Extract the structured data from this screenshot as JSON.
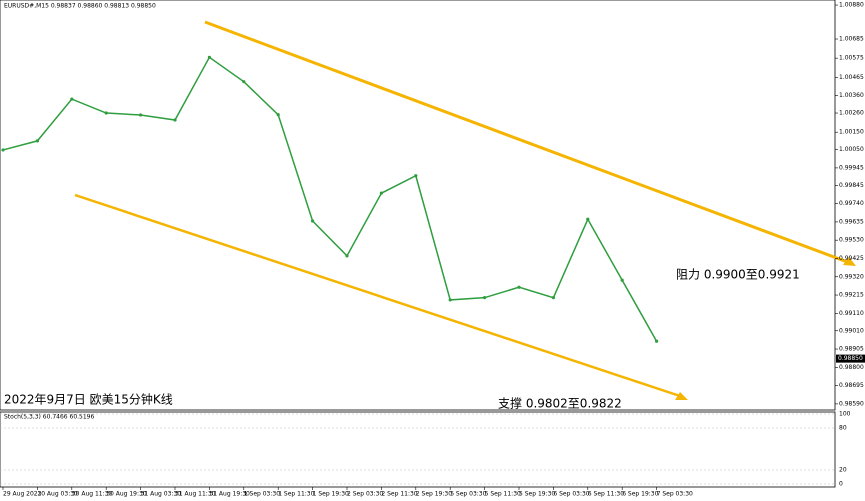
{
  "chart_data": {
    "type": "line",
    "header": "EURUSD#,M15 0.98837 0.98860 0.98813 0.98850",
    "title": "2022年9月7日 欧美15分钟K线",
    "annotations": [
      "阻力 0.9900至0.9921",
      "支撑 0.9802至0.9822"
    ],
    "categories": [
      "29 Aug 2022",
      "30 Aug 03:30",
      "30 Aug 11:30",
      "30 Aug 19:30",
      "31 Aug 03:30",
      "31 Aug 11:30",
      "31 Aug 19:30",
      "1 Sep 03:30",
      "1 Sep 11:30",
      "1 Sep 19:30",
      "2 Sep 03:30",
      "2 Sep 11:30",
      "2 Sep 19:30",
      "5 Sep 03:30",
      "5 Sep 11:30",
      "5 Sep 19:30",
      "6 Sep 03:30",
      "6 Sep 11:30",
      "6 Sep 19:30",
      "7 Sep 03:30"
    ],
    "values": [
      1.00048,
      1.001,
      1.0034,
      1.0026,
      1.00249,
      1.0022,
      1.0058,
      1.0044,
      1.0025,
      0.9964,
      0.9944,
      0.998,
      0.999,
      0.99187,
      0.992,
      0.9926,
      0.992,
      0.9965,
      0.993,
      0.9895
    ],
    "color": "#2e9e3e",
    "last": {
      "value": 0.9885,
      "label": "0.98850"
    },
    "ylim": [
      0.98555,
      1.00909
    ],
    "yticks": [
      {
        "value": 1.0088,
        "label": "1.00880"
      },
      {
        "value": 1.00685,
        "label": "1.00685"
      },
      {
        "value": 1.00575,
        "label": "1.00575"
      },
      {
        "value": 1.00465,
        "label": "1.00465"
      },
      {
        "value": 1.0036,
        "label": "1.00360"
      },
      {
        "value": 1.0026,
        "label": "1.00260"
      },
      {
        "value": 1.0015,
        "label": "1.00150"
      },
      {
        "value": 1.0005,
        "label": "1.00050"
      },
      {
        "value": 0.99945,
        "label": "0.99945"
      },
      {
        "value": 0.99845,
        "label": "0.99845"
      },
      {
        "value": 0.9974,
        "label": "0.99740"
      },
      {
        "value": 0.99635,
        "label": "0.99635"
      },
      {
        "value": 0.9953,
        "label": "0.99530"
      },
      {
        "value": 0.99425,
        "label": "0.99425"
      },
      {
        "value": 0.9932,
        "label": "0.99320"
      },
      {
        "value": 0.99215,
        "label": "0.99215"
      },
      {
        "value": 0.9911,
        "label": "0.99110"
      },
      {
        "value": 0.9901,
        "label": "0.99010"
      },
      {
        "value": 0.98905,
        "label": "0.98905"
      },
      {
        "value": 0.988,
        "label": "0.98800"
      },
      {
        "value": 0.98695,
        "label": "0.98695"
      },
      {
        "value": 0.9859,
        "label": "0.98590"
      }
    ],
    "oscillator": {
      "label": "Stoch(5,3,3) 60.7466 60.5196",
      "ylim": [
        0,
        100
      ],
      "yticks": [
        100,
        80,
        20,
        0
      ]
    }
  }
}
